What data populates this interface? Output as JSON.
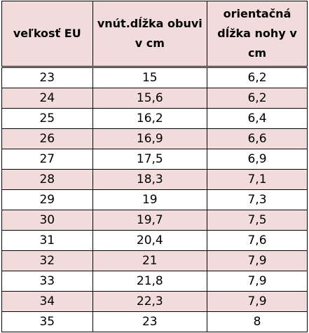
{
  "header": {
    "col1": "veľkosť EU",
    "col2": "vnút.dĺžka obuvi v cm",
    "col3": "orientačná dĺžka nohy v cm"
  },
  "rows": [
    {
      "size": "23",
      "inner_length": "15",
      "foot_length": "6,2"
    },
    {
      "size": "24",
      "inner_length": "15,6",
      "foot_length": "6,2"
    },
    {
      "size": "25",
      "inner_length": "16,2",
      "foot_length": "6,4"
    },
    {
      "size": "26",
      "inner_length": "16,9",
      "foot_length": "6,6"
    },
    {
      "size": "27",
      "inner_length": "17,5",
      "foot_length": "6,9"
    },
    {
      "size": "28",
      "inner_length": "18,3",
      "foot_length": "7,1"
    },
    {
      "size": "29",
      "inner_length": "19",
      "foot_length": "7,3"
    },
    {
      "size": "30",
      "inner_length": "19,7",
      "foot_length": "7,5"
    },
    {
      "size": "31",
      "inner_length": "20,4",
      "foot_length": "7,6"
    },
    {
      "size": "32",
      "inner_length": "21",
      "foot_length": "7,9"
    },
    {
      "size": "33",
      "inner_length": "21,8",
      "foot_length": "7,9"
    },
    {
      "size": "34",
      "inner_length": "22,3",
      "foot_length": "7,9"
    },
    {
      "size": "35",
      "inner_length": "23",
      "foot_length": "8"
    }
  ]
}
